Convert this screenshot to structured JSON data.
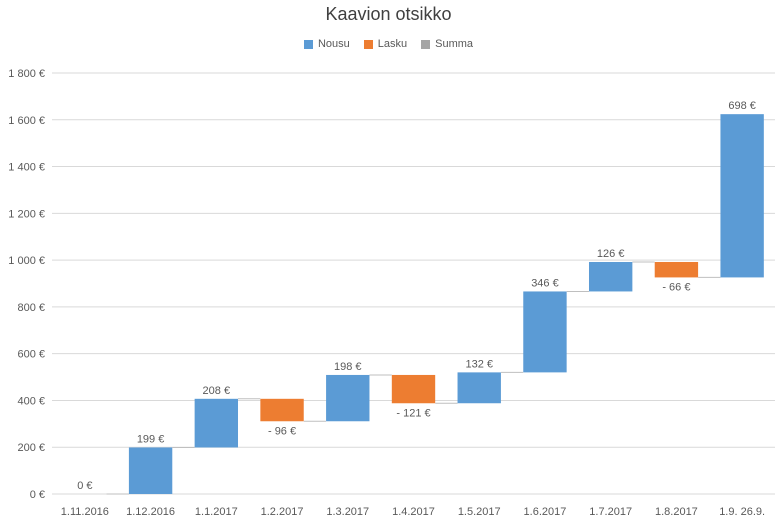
{
  "chart_data": {
    "type": "bar",
    "subtype": "waterfall",
    "title": "Kaavion otsikko",
    "legend": {
      "placement": "top",
      "entries": [
        {
          "name": "Nousu",
          "color": "#5b9bd5"
        },
        {
          "name": "Lasku",
          "color": "#ed7d31"
        },
        {
          "name": "Summa",
          "color": "#a5a5a5"
        }
      ]
    },
    "categories": [
      "1.11.2016",
      "1.12.2016",
      "1.1.2017",
      "1.2.2017",
      "1.3.2017",
      "1.4.2017",
      "1.5.2017",
      "1.6.2017",
      "1.7.2017",
      "1.8.2017",
      "1.9.  26.9."
    ],
    "values": [
      0,
      199,
      208,
      -96,
      198,
      -121,
      132,
      346,
      126,
      -66,
      698
    ],
    "data_labels": [
      "0 €",
      "199 €",
      "208 €",
      "- 96 €",
      "198 €",
      "- 121 €",
      "132 €",
      "346 €",
      "126 €",
      "- 66 €",
      "698 €"
    ],
    "ylim": [
      0,
      1800
    ],
    "yticks": [
      0,
      200,
      400,
      600,
      800,
      1000,
      1200,
      1400,
      1600,
      1800
    ],
    "ytick_labels": [
      "0 €",
      "200 €",
      "400 €",
      "600 €",
      "800 €",
      "1 000 €",
      "1 200 €",
      "1 400 €",
      "1 600 €",
      "1 800 €"
    ],
    "grid": true,
    "xlabel": "",
    "ylabel": ""
  },
  "colors": {
    "increase": "#5b9bd5",
    "decrease": "#ed7d31",
    "total": "#a5a5a5",
    "grid": "#d9d9d9",
    "connector": "#bfbfbf",
    "text": "#595959"
  }
}
